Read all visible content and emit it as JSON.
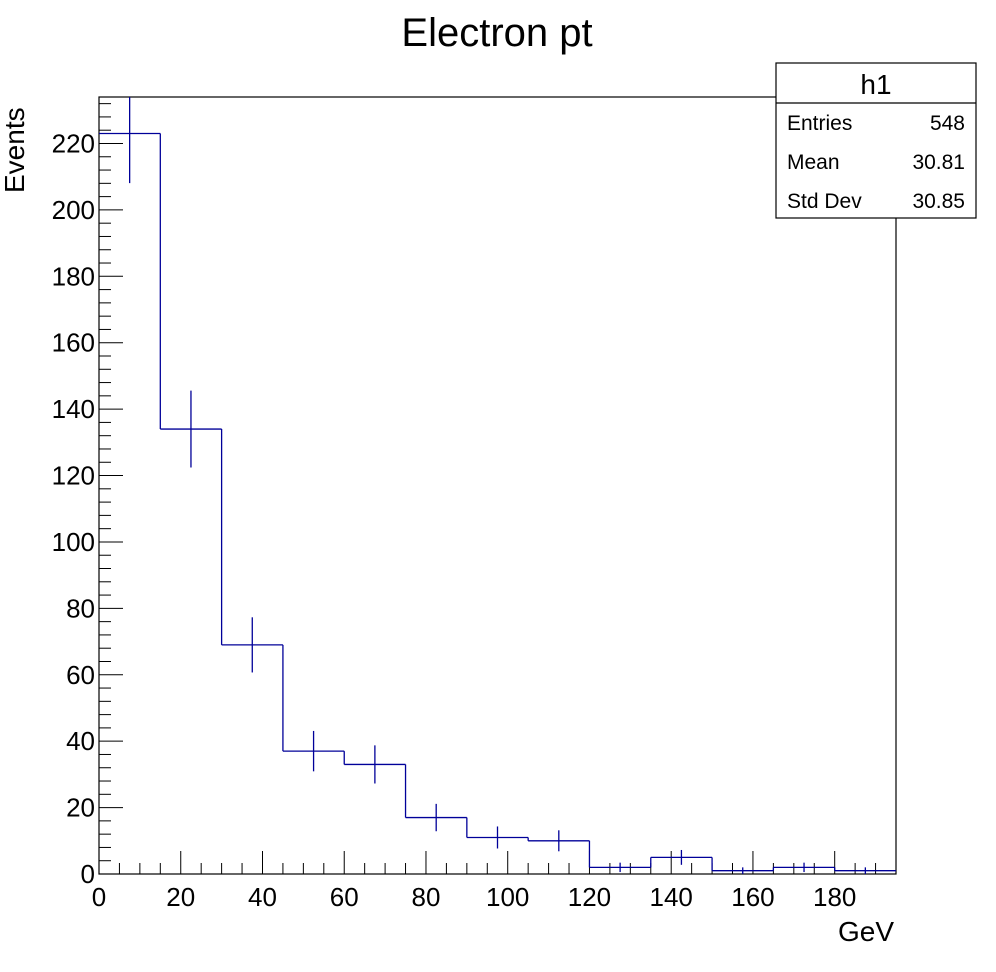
{
  "chart_data": {
    "type": "bar",
    "title": "Electron pt",
    "xlabel": "GeV",
    "ylabel": "Events",
    "xlim": [
      0,
      195
    ],
    "ylim": [
      0,
      234
    ],
    "bin_edges": [
      0,
      15,
      30,
      45,
      60,
      75,
      90,
      105,
      120,
      135,
      150,
      165,
      180,
      195
    ],
    "values": [
      223,
      134,
      69,
      37,
      33,
      17,
      11,
      10,
      2,
      5,
      1,
      2,
      1
    ],
    "x_ticks": [
      0,
      20,
      40,
      60,
      80,
      100,
      120,
      140,
      160,
      180
    ],
    "y_ticks": [
      0,
      20,
      40,
      60,
      80,
      100,
      120,
      140,
      160,
      180,
      200,
      220
    ],
    "line_color": "#000099",
    "grid": false,
    "stats_box": {
      "title": "h1",
      "rows": [
        {
          "label": "Entries",
          "value": "548"
        },
        {
          "label": "Mean",
          "value": "30.81"
        },
        {
          "label": "Std Dev",
          "value": "30.85"
        }
      ]
    }
  }
}
